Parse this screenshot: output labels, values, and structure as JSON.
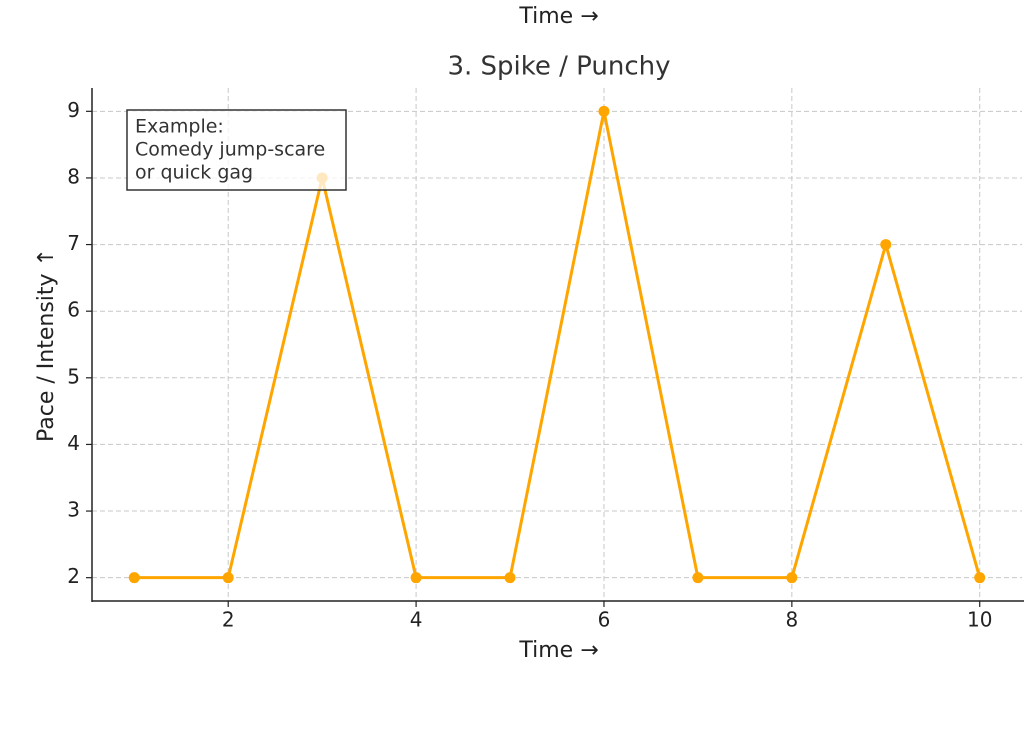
{
  "chart_data": {
    "type": "line",
    "suptitle": "Time →",
    "title": "3. Spike / Punchy",
    "x_label": "Time →",
    "y_label": "Pace / Intensity ↑",
    "annotation": [
      "Example:",
      "Comedy jump-scare",
      "or quick gag"
    ],
    "x": [
      1,
      2,
      3,
      4,
      5,
      6,
      7,
      8,
      9,
      10
    ],
    "values": [
      2,
      2,
      8,
      2,
      2,
      9,
      2,
      2,
      7,
      2
    ],
    "color": "#ffa500",
    "xlim": [
      0.55,
      10.45
    ],
    "xticks": [
      2,
      4,
      6,
      8,
      10
    ],
    "ylim": [
      1.65,
      9.35
    ],
    "yticks": [
      2,
      3,
      4,
      5,
      6,
      7,
      8,
      9
    ],
    "grid": true
  }
}
